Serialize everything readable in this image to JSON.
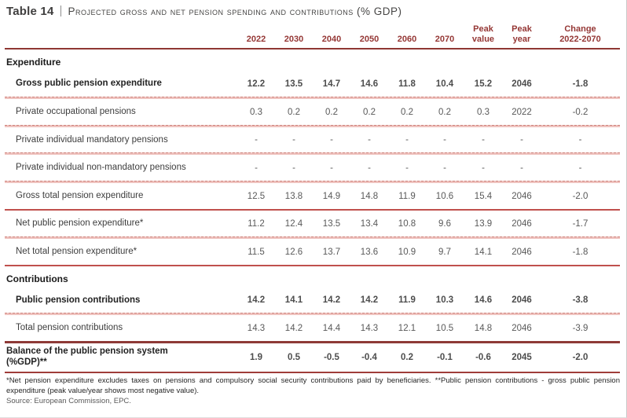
{
  "title": {
    "label": "Table 14",
    "separator": "|",
    "text": "Projected gross and net pension spending and contributions (% GDP)"
  },
  "table": {
    "columns": [
      {
        "id": "2022",
        "lines": [
          "2022"
        ]
      },
      {
        "id": "2030",
        "lines": [
          "2030"
        ]
      },
      {
        "id": "2040",
        "lines": [
          "2040"
        ]
      },
      {
        "id": "2050",
        "lines": [
          "2050"
        ]
      },
      {
        "id": "2060",
        "lines": [
          "2060"
        ]
      },
      {
        "id": "2070",
        "lines": [
          "2070"
        ]
      },
      {
        "id": "peak-value",
        "lines": [
          "Peak",
          "value"
        ]
      },
      {
        "id": "peak-year",
        "lines": [
          "Peak",
          "year"
        ]
      },
      {
        "id": "change",
        "lines": [
          "Change",
          "2022-2070"
        ]
      }
    ],
    "rows": [
      {
        "type": "section",
        "label": "Expenditure"
      },
      {
        "type": "data",
        "bold": true,
        "indent": true,
        "label": "Gross public pension expenditure",
        "values": [
          "12.2",
          "13.5",
          "14.7",
          "14.6",
          "11.8",
          "10.4",
          "15.2",
          "2046",
          "-1.8"
        ],
        "sep": "light"
      },
      {
        "type": "data",
        "bold": false,
        "indent": true,
        "label": "Private occupational pensions",
        "values": [
          "0.3",
          "0.2",
          "0.2",
          "0.2",
          "0.2",
          "0.2",
          "0.3",
          "2022",
          "-0.2"
        ],
        "sep": "light"
      },
      {
        "type": "data",
        "bold": false,
        "indent": true,
        "label": "Private individual mandatory pensions",
        "values": [
          "-",
          "-",
          "-",
          "-",
          "-",
          "-",
          "-",
          "-",
          "-"
        ],
        "sep": "light"
      },
      {
        "type": "data",
        "bold": false,
        "indent": true,
        "label": "Private individual non-mandatory pensions",
        "values": [
          "-",
          "-",
          "-",
          "-",
          "-",
          "-",
          "-",
          "-",
          "-"
        ],
        "sep": "light"
      },
      {
        "type": "data",
        "bold": false,
        "indent": true,
        "label": "Gross total pension expenditure",
        "values": [
          "12.5",
          "13.8",
          "14.9",
          "14.8",
          "11.9",
          "10.6",
          "15.4",
          "2046",
          "-2.0"
        ],
        "sep": "strong"
      },
      {
        "type": "data",
        "bold": false,
        "indent": true,
        "label": "Net public pension expenditure*",
        "values": [
          "11.2",
          "12.4",
          "13.5",
          "13.4",
          "10.8",
          "9.6",
          "13.9",
          "2046",
          "-1.7"
        ],
        "sep": "light"
      },
      {
        "type": "data",
        "bold": false,
        "indent": true,
        "label": "Net total pension expenditure*",
        "values": [
          "11.5",
          "12.6",
          "13.7",
          "13.6",
          "10.9",
          "9.7",
          "14.1",
          "2046",
          "-1.8"
        ],
        "sep": "strong"
      },
      {
        "type": "section",
        "label": "Contributions"
      },
      {
        "type": "data",
        "bold": true,
        "indent": true,
        "label": "Public pension contributions",
        "values": [
          "14.2",
          "14.1",
          "14.2",
          "14.2",
          "11.9",
          "10.3",
          "14.6",
          "2046",
          "-3.8"
        ],
        "sep": "light"
      },
      {
        "type": "data",
        "bold": false,
        "indent": true,
        "label": "Total pension contributions",
        "values": [
          "14.3",
          "14.2",
          "14.4",
          "14.3",
          "12.1",
          "10.5",
          "14.8",
          "2046",
          "-3.9"
        ],
        "sep": "thick"
      },
      {
        "type": "data",
        "bold": true,
        "indent": false,
        "label": "Balance of the public pension system (%GDP)**",
        "values": [
          "1.9",
          "0.5",
          "-0.5",
          "-0.4",
          "0.2",
          "-0.1",
          "-0.6",
          "2045",
          "-2.0"
        ],
        "sep": "bottom"
      }
    ]
  },
  "footnotes": {
    "note": "*Net pension expenditure excludes taxes on pensions and compulsory social security contributions paid by beneficiaries. **Public pension contributions - gross public pension expenditure (peak value/year shows most negative value).",
    "source": "Source: European Commission, EPC."
  },
  "colors": {
    "header_text": "#953735",
    "line_header": "#8f3733",
    "line_strong": "#c0504d",
    "line_thick": "#8e3a37",
    "line_light": "#efc3bf",
    "line_light_dash": "#cd817a",
    "number_text": "#595959",
    "title_text": "#3f3e3e"
  }
}
